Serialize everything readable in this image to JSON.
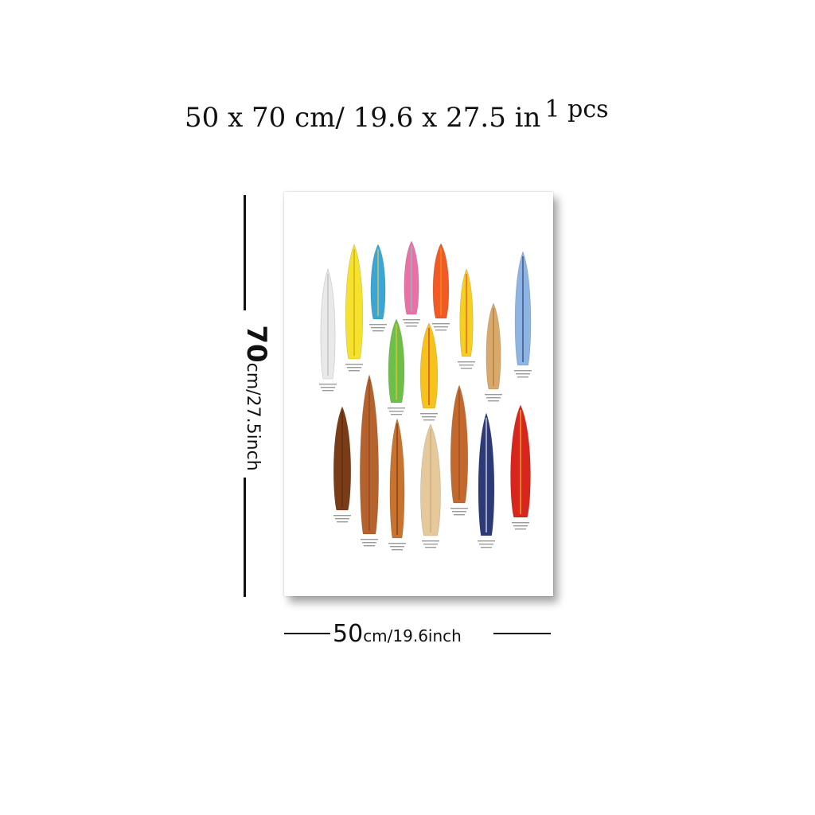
{
  "title": {
    "dimensions": "50 x 70 cm/ 19.6 x 27.5 in",
    "quantity": "1 pcs"
  },
  "height_label": {
    "value": "70",
    "unit_text": "cm/27.5inch"
  },
  "width_label": {
    "value": "50",
    "unit_text": "cm/19.6inch"
  },
  "colors": {
    "poster": "#ffffff",
    "text": "#111111"
  },
  "poster": {
    "boards": [
      {
        "name": "white-board",
        "color": "#e9e9e9",
        "stripe": "#bdbdbd"
      },
      {
        "name": "yellow-board",
        "color": "#f4e22e",
        "stripe": "#c9a800"
      },
      {
        "name": "blue-board",
        "color": "#3aa6d6",
        "stripe": "#f2c94c"
      },
      {
        "name": "pink-board",
        "color": "#ec6fa6",
        "stripe": "#6ad1c8"
      },
      {
        "name": "orange-board",
        "color": "#f15a24",
        "stripe": "#f7931e"
      },
      {
        "name": "yellow-bolt-board",
        "color": "#f5d020",
        "stripe": "#e74c3c"
      },
      {
        "name": "wood-light-board",
        "color": "#d9a86b",
        "stripe": "#b07a3b"
      },
      {
        "name": "blue-long-board",
        "color": "#8eb4e3",
        "stripe": "#2c3e75"
      },
      {
        "name": "rainbow-board",
        "color": "#6cc04a",
        "stripe": "#f2c32d"
      },
      {
        "name": "yellow-red-board",
        "color": "#f7c21b",
        "stripe": "#c0392b"
      },
      {
        "name": "dark-wood-board",
        "color": "#7a3b17",
        "stripe": "#5a2a10"
      },
      {
        "name": "wood-long-board",
        "color": "#b5622d",
        "stripe": "#8a4520"
      },
      {
        "name": "stripe-wood-board",
        "color": "#c8742e",
        "stripe": "#7a3311"
      },
      {
        "name": "pale-wood-board",
        "color": "#e6c99a",
        "stripe": "#caa574"
      },
      {
        "name": "copper-board",
        "color": "#c4692d",
        "stripe": "#9a4b1c"
      },
      {
        "name": "navy-board",
        "color": "#2c3a78",
        "stripe": "#e9e9f3"
      },
      {
        "name": "red-yellow-board",
        "color": "#d9261c",
        "stripe": "#f5c542"
      }
    ]
  }
}
